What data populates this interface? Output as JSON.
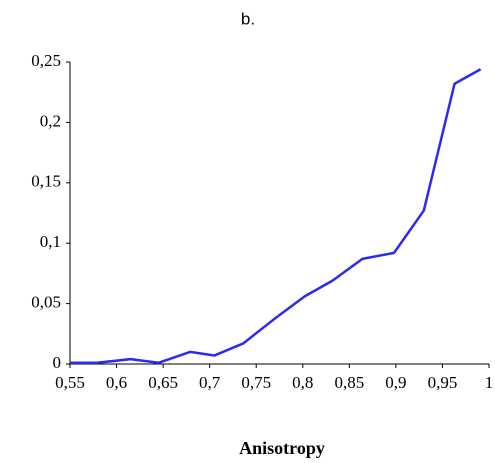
{
  "chart_data": {
    "type": "line",
    "title": "b.",
    "x_label": "Anisotropy",
    "x": [
      0.55,
      0.579,
      0.615,
      0.645,
      0.679,
      0.705,
      0.736,
      0.769,
      0.802,
      0.832,
      0.864,
      0.898,
      0.93,
      0.963,
      0.991
    ],
    "series": [
      {
        "color": "#2a2af0",
        "values": [
          0.001,
          0.001,
          0.004,
          0.001,
          0.01,
          0.007,
          0.017,
          0.037,
          0.056,
          0.069,
          0.087,
          0.092,
          0.127,
          0.232,
          0.244
        ]
      }
    ],
    "xlim": [
      0.55,
      1
    ],
    "ylim": [
      0,
      0.25
    ],
    "xticks": [
      {
        "value": 0.55,
        "label": "0,55"
      },
      {
        "value": 0.6,
        "label": "0,6"
      },
      {
        "value": 0.65,
        "label": "0,65"
      },
      {
        "value": 0.7,
        "label": "0,7"
      },
      {
        "value": 0.75,
        "label": "0,75"
      },
      {
        "value": 0.8,
        "label": "0,8"
      },
      {
        "value": 0.85,
        "label": "0,85"
      },
      {
        "value": 0.9,
        "label": "0,9"
      },
      {
        "value": 0.95,
        "label": "0,95"
      },
      1
    ],
    "yticks": [
      0,
      {
        "value": 0.05,
        "label": "0,05"
      },
      {
        "value": 0.1,
        "label": "0,1"
      },
      {
        "value": 0.15,
        "label": "0,15"
      },
      {
        "value": 0.2,
        "label": "0,2"
      },
      {
        "value": 0.25,
        "label": "0,25"
      }
    ],
    "grid": false
  }
}
